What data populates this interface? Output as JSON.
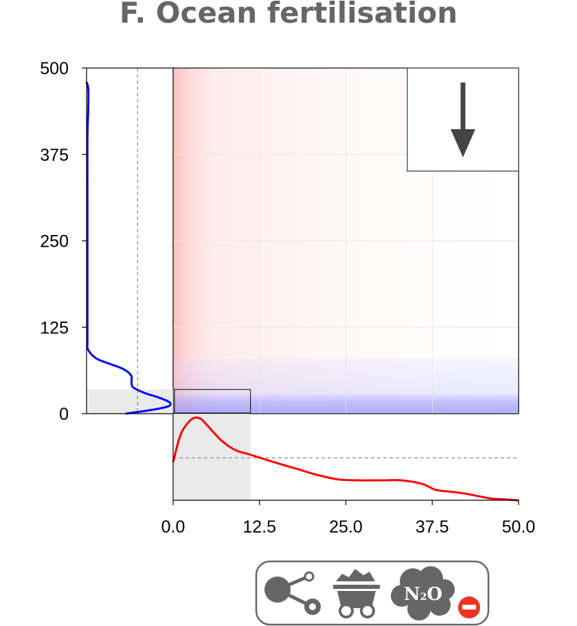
{
  "chart_data": {
    "title": "F. Ocean fertilisation",
    "type": "area",
    "main_panel": {
      "xlim": [
        0,
        50
      ],
      "ylim": [
        0,
        500
      ],
      "x_ticks": [
        "0.0",
        "12.5",
        "25.0",
        "37.5",
        "50.0"
      ],
      "y_ticks": [
        "0",
        "125",
        "250",
        "375",
        "500"
      ],
      "grid": true,
      "red_band_x": [
        0,
        50
      ],
      "blue_band_y": [
        0,
        80
      ],
      "blue_band_dense_y": [
        2,
        28
      ],
      "highlight_box": {
        "x": [
          0.2,
          11.2
        ],
        "y": [
          1,
          35
        ]
      },
      "indicator": "down-arrow",
      "indicator_position": "top-right"
    },
    "x_marginal": {
      "color": "#ff0000",
      "shaded_x": [
        0,
        11.2
      ],
      "median_line_density": 0.49,
      "x": [
        0,
        1,
        2,
        3,
        4,
        5,
        7,
        9,
        11,
        13,
        15,
        18,
        21,
        24,
        27,
        30,
        33,
        36,
        38,
        40,
        42,
        44,
        46,
        48,
        50
      ],
      "density": [
        0.44,
        0.74,
        0.88,
        0.95,
        0.94,
        0.86,
        0.69,
        0.58,
        0.53,
        0.48,
        0.43,
        0.36,
        0.29,
        0.24,
        0.23,
        0.23,
        0.23,
        0.19,
        0.12,
        0.1,
        0.08,
        0.05,
        0.02,
        0.01,
        0.0
      ]
    },
    "y_marginal": {
      "color": "#0000ff",
      "shaded_y": [
        0,
        35
      ],
      "median_line_density": 0.59,
      "y": [
        0,
        5,
        10,
        14,
        18,
        24,
        30,
        38,
        44,
        48,
        54,
        60,
        66,
        72,
        78,
        84,
        90,
        95,
        100,
        110,
        200,
        300,
        400,
        440,
        470,
        480
      ],
      "density": [
        0.45,
        0.73,
        0.93,
        0.97,
        0.94,
        0.82,
        0.67,
        0.54,
        0.52,
        0.52,
        0.52,
        0.48,
        0.4,
        0.27,
        0.14,
        0.07,
        0.03,
        0.01,
        0.01,
        0.01,
        0.01,
        0.01,
        0.01,
        0.02,
        0.02,
        0.0
      ]
    }
  },
  "footer": {
    "icons": [
      "molecule-icon",
      "coal-cart-icon",
      "n2o-cloud-icon",
      "minus-icon"
    ],
    "n2o_label": "N",
    "n2o_subscript": "2",
    "n2o_suffix": "O"
  }
}
